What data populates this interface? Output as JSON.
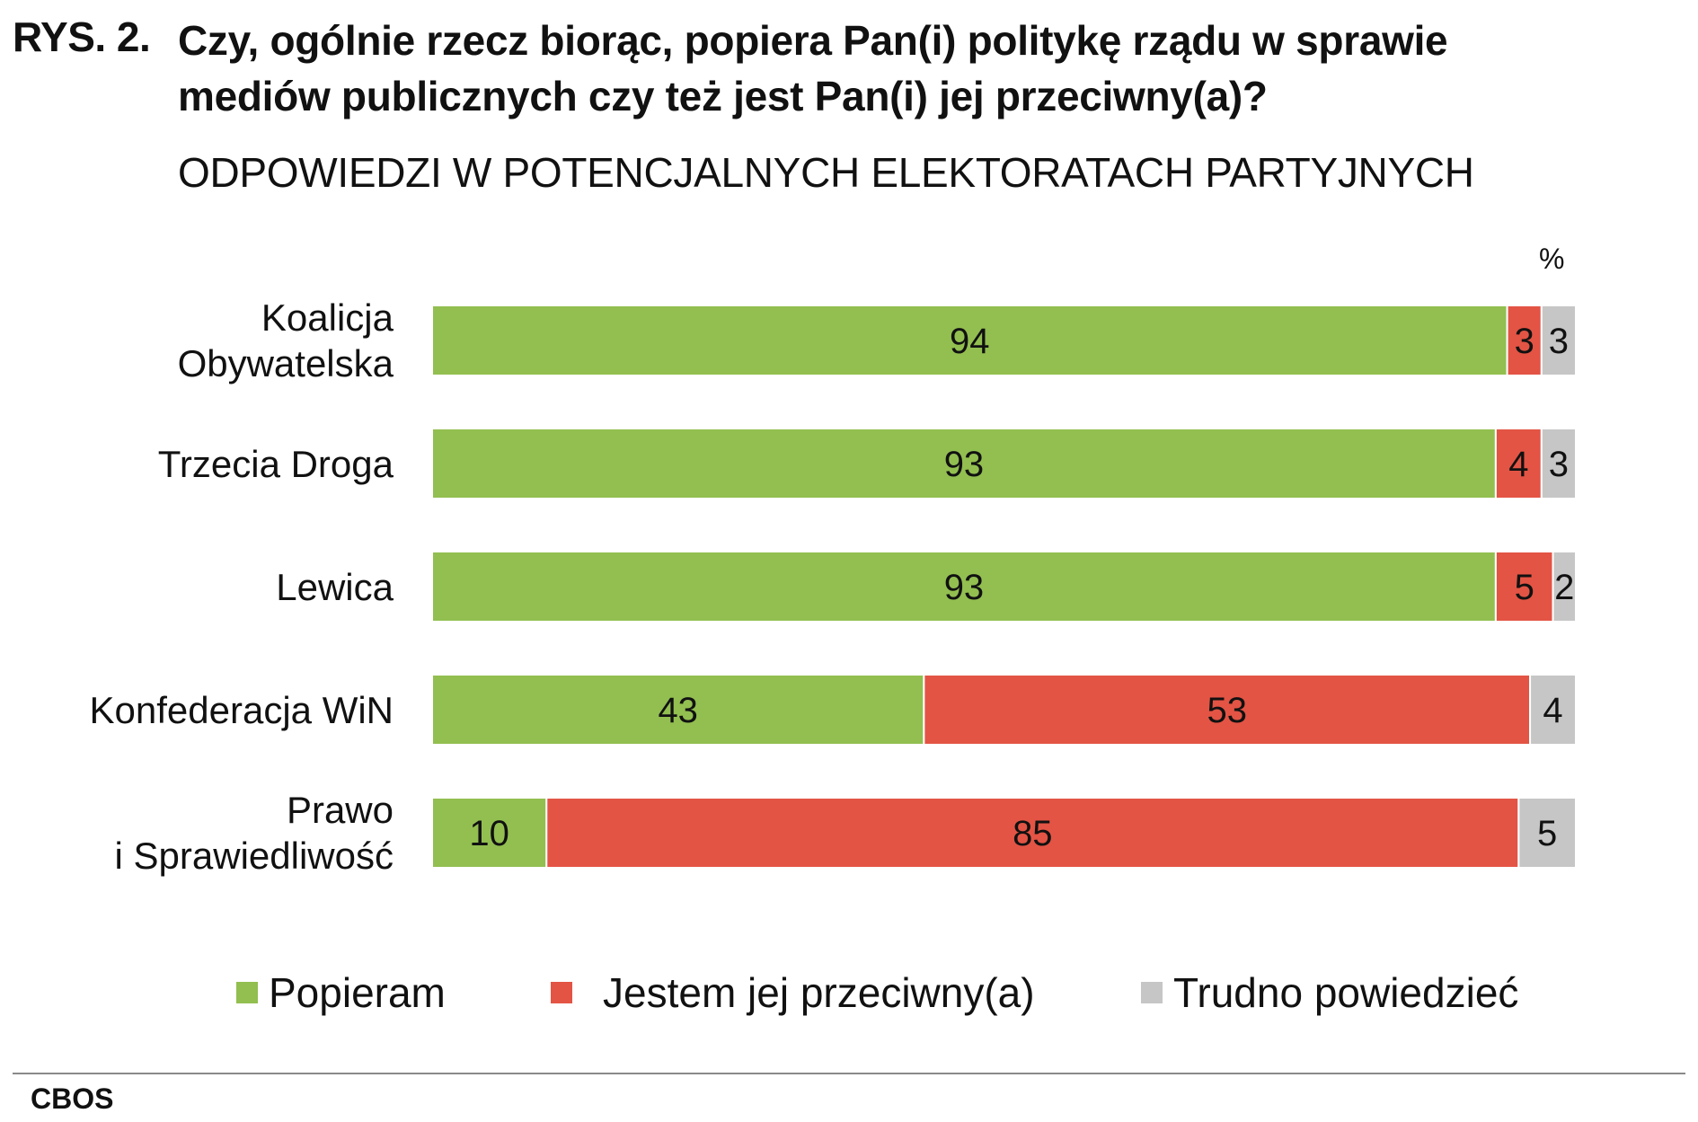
{
  "header": {
    "figure_label": "RYS. 2.",
    "title": "Czy, ogólnie rzecz biorąc, popiera Pan(i) politykę rządu w sprawie mediów publicznych czy też jest Pan(i) jej przeciwny(a)?",
    "subtitle": "ODPOWIEDZI W POTENCJALNYCH ELEKTORATACH PARTYJNYCH"
  },
  "unit": "%",
  "source": "CBOS",
  "colors": {
    "popieram": "#92bf50",
    "przeciwny": "#e35444",
    "trudno": "#c6c6c6"
  },
  "chart_data": {
    "type": "bar",
    "orientation": "horizontal",
    "stacked": true,
    "xlim": [
      0,
      100
    ],
    "grid": false,
    "legend_position": "bottom",
    "categories": [
      "Koalicja Obywatelska",
      "Trzecia Droga",
      "Lewica",
      "Konfederacja WiN",
      "Prawo i Sprawiedliwość"
    ],
    "category_lines": [
      [
        "Koalicja",
        "Obywatelska"
      ],
      [
        "Trzecia Droga"
      ],
      [
        "Lewica"
      ],
      [
        "Konfederacja WiN"
      ],
      [
        "Prawo",
        "i Sprawiedliwość"
      ]
    ],
    "series": [
      {
        "name": "Popieram",
        "values": [
          94,
          93,
          93,
          43,
          10
        ]
      },
      {
        "name": "Jestem jej przeciwny(a)",
        "values": [
          3,
          4,
          5,
          53,
          85
        ]
      },
      {
        "name": "Trudno powiedzieć",
        "values": [
          3,
          3,
          2,
          4,
          5
        ]
      }
    ]
  }
}
